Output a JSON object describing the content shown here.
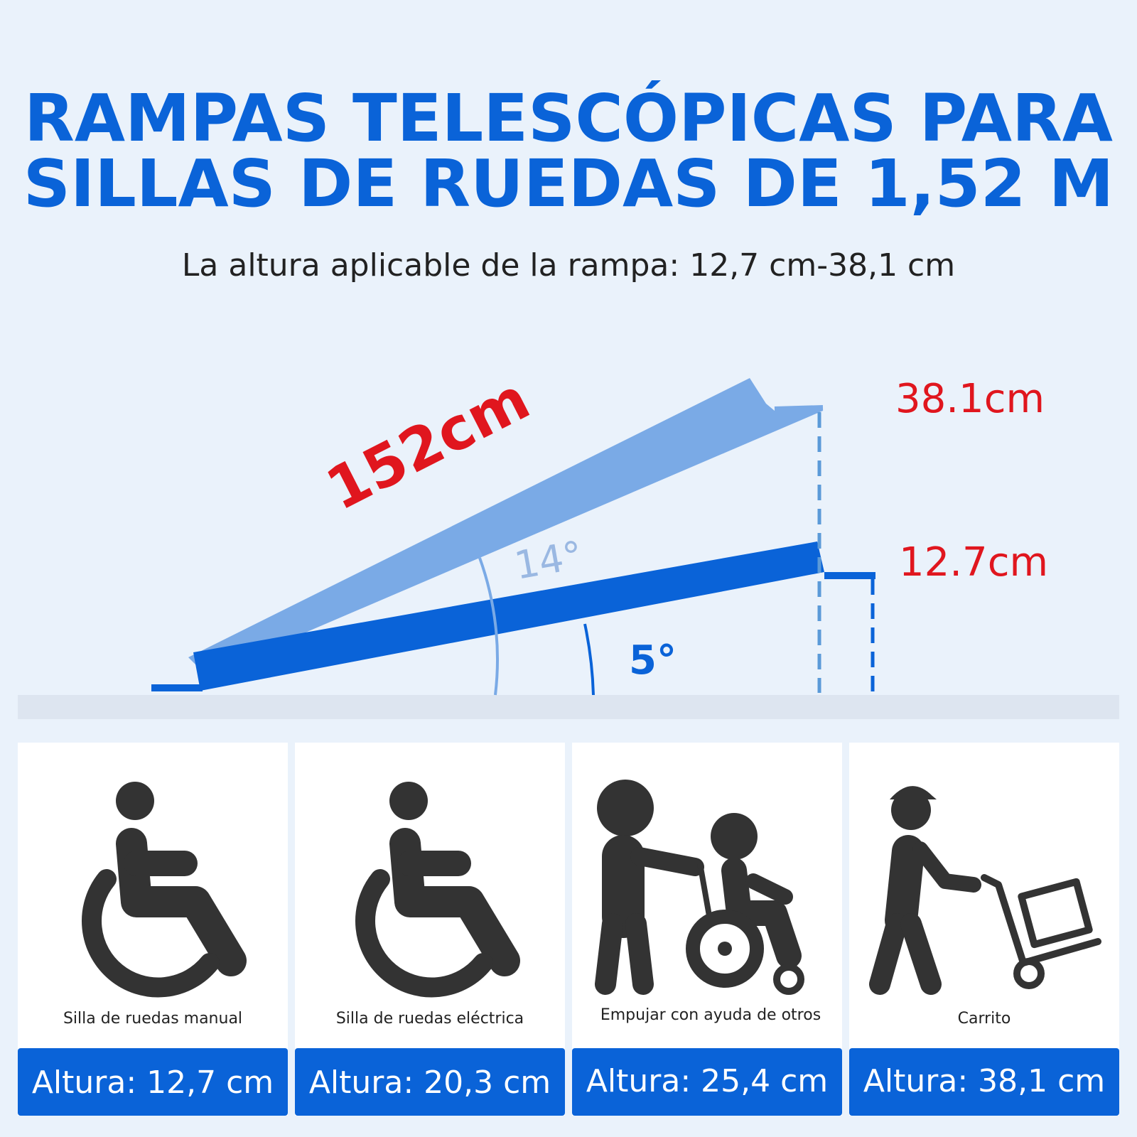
{
  "header": {
    "title": [
      "RAMPAS TELESCÓPICAS PARA",
      "SILLAS DE RUEDAS DE 1,52 M"
    ],
    "subtitle": "La altura aplicable de la rampa: 12,7 cm-38,1 cm"
  },
  "diagram": {
    "length": "152cm",
    "high": "38.1cm",
    "low": "12.7cm",
    "angle_high": "14°",
    "angle_low": "5°"
  },
  "cards": [
    {
      "caption": "Silla de ruedas manual",
      "height": "Altura: 12,7 cm"
    },
    {
      "caption": "Silla de ruedas eléctrica",
      "height": "Altura: 20,3 cm"
    },
    {
      "caption": "Empujar con ayuda de otros",
      "height": "Altura: 25,4 cm"
    },
    {
      "caption": "Carrito",
      "height": "Altura: 38,1 cm"
    }
  ]
}
